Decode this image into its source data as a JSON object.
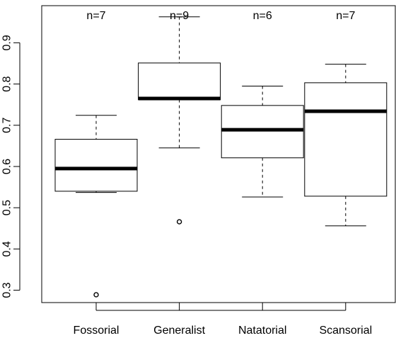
{
  "chart_data": {
    "type": "boxplot",
    "title": "",
    "xlabel": "",
    "ylabel": "",
    "ylim": [
      0.27,
      0.99
    ],
    "y_ticks": [
      0.3,
      0.4,
      0.5,
      0.6,
      0.7,
      0.8,
      0.9
    ],
    "y_tick_labels": [
      "0.3",
      "0.4",
      "0.5",
      "0.6",
      "0.7",
      "0.8",
      "0.9"
    ],
    "categories": [
      "Fossorial",
      "Generalist",
      "Natatorial",
      "Scansorial"
    ],
    "counts": [
      "n=7",
      "n=9",
      "n=6",
      "n=7"
    ],
    "boxes": [
      {
        "category": "Fossorial",
        "whisker_low": 0.537,
        "q1": 0.54,
        "median": 0.595,
        "q3": 0.666,
        "whisker_high": 0.724,
        "outliers": [
          0.289
        ]
      },
      {
        "category": "Generalist",
        "whisker_low": 0.645,
        "q1": 0.762,
        "median": 0.765,
        "q3": 0.851,
        "whisker_high": 0.963,
        "outliers": [
          0.466
        ]
      },
      {
        "category": "Natatorial",
        "whisker_low": 0.526,
        "q1": 0.621,
        "median": 0.689,
        "q3": 0.748,
        "whisker_high": 0.795,
        "outliers": []
      },
      {
        "category": "Scansorial",
        "whisker_low": 0.456,
        "q1": 0.528,
        "median": 0.734,
        "q3": 0.803,
        "whisker_high": 0.848,
        "outliers": []
      }
    ],
    "grid": false,
    "legend": "none"
  }
}
